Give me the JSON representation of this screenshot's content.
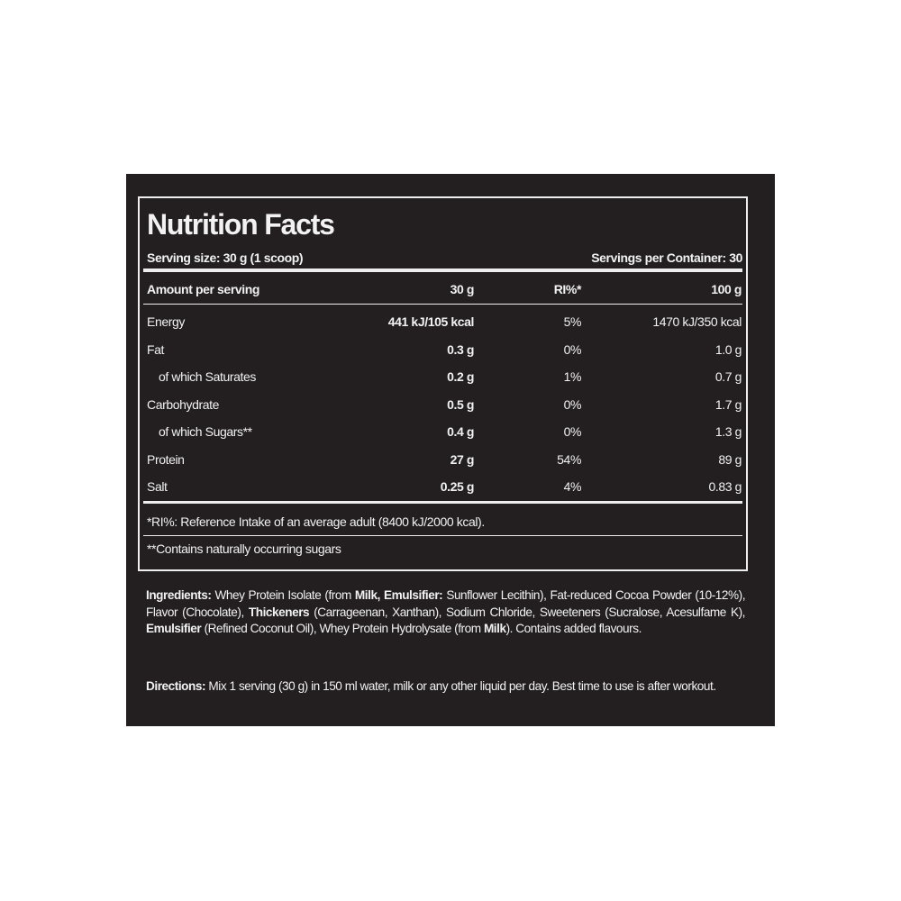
{
  "label": {
    "title": "Nutrition Facts",
    "serving_size": "Serving size: 30 g (1 scoop)",
    "servings_per_container": "Servings per Container: 30",
    "header": [
      "Amount per serving",
      "30 g",
      "RI%*",
      "100 g"
    ],
    "rows": [
      [
        "Energy",
        "441 kJ/105 kcal",
        "5%",
        "1470 kJ/350 kcal"
      ],
      [
        "Fat",
        "0.3 g",
        "0%",
        "1.0 g"
      ],
      [
        "of which Saturates",
        "0.2 g",
        "1%",
        "0.7 g"
      ],
      [
        "Carbohydrate",
        "0.5 g",
        "0%",
        "1.7 g"
      ],
      [
        "of which Sugars**",
        "0.4 g",
        "0%",
        "1.3 g"
      ],
      [
        "Protein",
        "27 g",
        "54%",
        "89 g"
      ],
      [
        "Salt",
        "0.25 g",
        "4%",
        "0.83 g"
      ]
    ],
    "footnotes": [
      "*RI%: Reference Intake of an average adult (8400 kJ/2000 kcal).",
      "**Contains naturally occurring sugars"
    ]
  },
  "ingredients": {
    "label": "Ingredients:",
    "parts": [
      "Whey Protein Isolate (from",
      "Milk",
      ",",
      "Emulsifier:",
      "Sunflower Lecithin), Fat-reduced Cocoa Powder (10-12%), Flavor (Chocolate),",
      "Thickeners",
      "(Carrageenan, Xanthan), Sodium Chloride, Sweeteners (Sucralose, Acesulfame K),",
      "Emulsifier",
      "(Refined Coconut Oil), Whey Protein Hydrolysate (from",
      "Milk",
      "). Contains added flavours."
    ]
  },
  "directions": {
    "label": "Directions:",
    "text": "Mix 1 serving (30 g) in 150 ml water, milk or any other liquid per day. Best time to use is after workout."
  }
}
